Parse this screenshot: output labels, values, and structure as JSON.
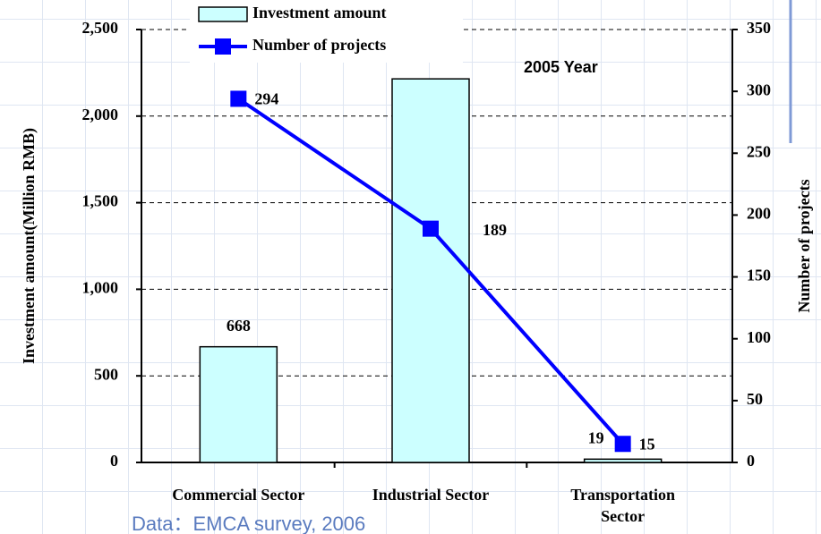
{
  "chart_data": {
    "type": "bar_line",
    "annotation": "2005 Year",
    "source": "Data：EMCA survey, 2006",
    "y_label": "Investment amount(Million RMB)",
    "y2_label": "Number of projects",
    "categories": [
      "Commercial Sector",
      "Industrial Sector",
      "Transportation Sector"
    ],
    "series": [
      {
        "name": "Investment amount",
        "color": "#ccffff",
        "values": [
          668,
          2215,
          19
        ],
        "value_labels": [
          "668",
          null,
          "19"
        ]
      },
      {
        "name": "Number of projects",
        "color": "#0000ff",
        "axis": "y2",
        "values": [
          294,
          189,
          15
        ]
      }
    ],
    "ylim": [
      0,
      2500
    ],
    "yticks": [
      0,
      500,
      {
        "value": 1000,
        "label": "1,000"
      },
      {
        "value": 1500,
        "label": "1,500"
      },
      {
        "value": 2000,
        "label": "2,000"
      },
      {
        "value": 2500,
        "label": "2,500"
      }
    ],
    "y2lim": [
      0,
      350
    ],
    "y2ticks": [
      0,
      50,
      100,
      150,
      200,
      250,
      300,
      350
    ],
    "grid": true
  }
}
